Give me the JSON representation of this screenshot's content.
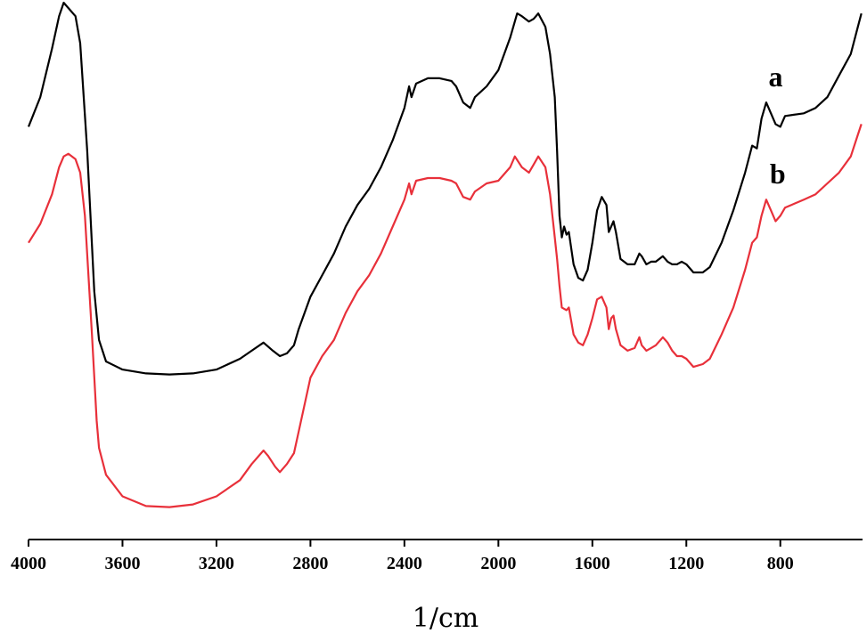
{
  "chart_data": {
    "type": "line",
    "title": "",
    "xlabel": "1/cm",
    "ylabel": "",
    "x_reversed": true,
    "xlim": [
      4000,
      450
    ],
    "ylim": [
      0,
      100
    ],
    "x_ticks": [
      4000,
      3600,
      3200,
      2800,
      2400,
      2000,
      1600,
      1200,
      800
    ],
    "x_tick_labels": [
      "4000",
      "3600",
      "3200",
      "2800",
      "2400",
      "2000",
      "1600",
      "1200",
      "800"
    ],
    "grid": false,
    "legend": "none",
    "series": [
      {
        "name": "a",
        "color": "#000000",
        "points": [
          [
            4000,
            76.5
          ],
          [
            3950,
            82
          ],
          [
            3900,
            91
          ],
          [
            3870,
            97
          ],
          [
            3850,
            99.5
          ],
          [
            3830,
            98.5
          ],
          [
            3800,
            97
          ],
          [
            3780,
            92
          ],
          [
            3750,
            72
          ],
          [
            3720,
            46
          ],
          [
            3700,
            37
          ],
          [
            3670,
            33
          ],
          [
            3600,
            31.5
          ],
          [
            3500,
            30.8
          ],
          [
            3400,
            30.6
          ],
          [
            3300,
            30.8
          ],
          [
            3200,
            31.5
          ],
          [
            3100,
            33.5
          ],
          [
            3050,
            35
          ],
          [
            3000,
            36.5
          ],
          [
            2960,
            35
          ],
          [
            2930,
            34
          ],
          [
            2900,
            34.5
          ],
          [
            2870,
            36
          ],
          [
            2850,
            39
          ],
          [
            2800,
            45
          ],
          [
            2750,
            49
          ],
          [
            2700,
            53
          ],
          [
            2650,
            58
          ],
          [
            2600,
            62
          ],
          [
            2550,
            65
          ],
          [
            2500,
            69
          ],
          [
            2450,
            74
          ],
          [
            2400,
            80
          ],
          [
            2380,
            84
          ],
          [
            2370,
            82
          ],
          [
            2350,
            84.5
          ],
          [
            2300,
            85.5
          ],
          [
            2250,
            85.5
          ],
          [
            2200,
            85
          ],
          [
            2180,
            84
          ],
          [
            2150,
            81
          ],
          [
            2120,
            80
          ],
          [
            2100,
            82
          ],
          [
            2050,
            84
          ],
          [
            2000,
            87
          ],
          [
            1950,
            93
          ],
          [
            1920,
            97.5
          ],
          [
            1900,
            97
          ],
          [
            1870,
            96
          ],
          [
            1850,
            96.5
          ],
          [
            1830,
            97.5
          ],
          [
            1800,
            95
          ],
          [
            1780,
            90
          ],
          [
            1760,
            82
          ],
          [
            1750,
            72
          ],
          [
            1740,
            60
          ],
          [
            1730,
            56
          ],
          [
            1720,
            58
          ],
          [
            1710,
            56.5
          ],
          [
            1700,
            57
          ],
          [
            1680,
            51
          ],
          [
            1660,
            48.5
          ],
          [
            1640,
            48
          ],
          [
            1620,
            50
          ],
          [
            1600,
            55
          ],
          [
            1580,
            61
          ],
          [
            1560,
            63.5
          ],
          [
            1540,
            62
          ],
          [
            1530,
            57
          ],
          [
            1520,
            58
          ],
          [
            1510,
            59
          ],
          [
            1500,
            57
          ],
          [
            1480,
            52
          ],
          [
            1450,
            51
          ],
          [
            1420,
            51
          ],
          [
            1400,
            53
          ],
          [
            1390,
            52.5
          ],
          [
            1370,
            51
          ],
          [
            1350,
            51.5
          ],
          [
            1330,
            51.5
          ],
          [
            1300,
            52.5
          ],
          [
            1280,
            51.5
          ],
          [
            1260,
            51
          ],
          [
            1240,
            51
          ],
          [
            1220,
            51.5
          ],
          [
            1200,
            51
          ],
          [
            1170,
            49.5
          ],
          [
            1130,
            49.5
          ],
          [
            1100,
            50.5
          ],
          [
            1050,
            55
          ],
          [
            1000,
            61
          ],
          [
            950,
            68
          ],
          [
            920,
            73
          ],
          [
            900,
            72.5
          ],
          [
            880,
            78
          ],
          [
            860,
            81
          ],
          [
            840,
            79
          ],
          [
            820,
            77
          ],
          [
            800,
            76.5
          ],
          [
            780,
            78.5
          ],
          [
            700,
            79
          ],
          [
            650,
            80
          ],
          [
            600,
            82
          ],
          [
            550,
            86
          ],
          [
            500,
            90
          ],
          [
            470,
            95
          ],
          [
            455,
            97.5
          ]
        ]
      },
      {
        "name": "b",
        "color": "#e8303a",
        "points": [
          [
            4000,
            55
          ],
          [
            3950,
            58.5
          ],
          [
            3900,
            64
          ],
          [
            3870,
            69
          ],
          [
            3850,
            71
          ],
          [
            3830,
            71.5
          ],
          [
            3800,
            70.5
          ],
          [
            3780,
            68
          ],
          [
            3760,
            60
          ],
          [
            3730,
            38
          ],
          [
            3710,
            22
          ],
          [
            3700,
            17
          ],
          [
            3670,
            12
          ],
          [
            3600,
            8
          ],
          [
            3500,
            6.2
          ],
          [
            3400,
            6
          ],
          [
            3300,
            6.5
          ],
          [
            3200,
            8
          ],
          [
            3100,
            11
          ],
          [
            3050,
            14
          ],
          [
            3000,
            16.5
          ],
          [
            2980,
            15.5
          ],
          [
            2950,
            13.5
          ],
          [
            2930,
            12.5
          ],
          [
            2900,
            14
          ],
          [
            2870,
            16
          ],
          [
            2850,
            20
          ],
          [
            2800,
            30
          ],
          [
            2750,
            34
          ],
          [
            2700,
            37
          ],
          [
            2650,
            42
          ],
          [
            2600,
            46
          ],
          [
            2550,
            49
          ],
          [
            2500,
            53
          ],
          [
            2450,
            58
          ],
          [
            2400,
            63
          ],
          [
            2380,
            66
          ],
          [
            2370,
            64
          ],
          [
            2350,
            66.5
          ],
          [
            2300,
            67
          ],
          [
            2250,
            67
          ],
          [
            2200,
            66.5
          ],
          [
            2180,
            66
          ],
          [
            2150,
            63.5
          ],
          [
            2120,
            63
          ],
          [
            2100,
            64.5
          ],
          [
            2050,
            66
          ],
          [
            2000,
            66.5
          ],
          [
            1950,
            69
          ],
          [
            1930,
            71
          ],
          [
            1900,
            69
          ],
          [
            1870,
            68
          ],
          [
            1850,
            69.5
          ],
          [
            1830,
            71
          ],
          [
            1800,
            69
          ],
          [
            1780,
            64
          ],
          [
            1760,
            56
          ],
          [
            1750,
            52
          ],
          [
            1740,
            47
          ],
          [
            1730,
            43
          ],
          [
            1710,
            42.5
          ],
          [
            1700,
            43
          ],
          [
            1680,
            38
          ],
          [
            1660,
            36.5
          ],
          [
            1640,
            36
          ],
          [
            1620,
            38
          ],
          [
            1600,
            41
          ],
          [
            1580,
            44.5
          ],
          [
            1560,
            45
          ],
          [
            1540,
            43
          ],
          [
            1530,
            39
          ],
          [
            1520,
            41
          ],
          [
            1510,
            41.5
          ],
          [
            1500,
            39
          ],
          [
            1480,
            36
          ],
          [
            1450,
            35
          ],
          [
            1420,
            35.5
          ],
          [
            1400,
            37.5
          ],
          [
            1390,
            36
          ],
          [
            1370,
            35
          ],
          [
            1350,
            35.5
          ],
          [
            1330,
            36
          ],
          [
            1300,
            37.5
          ],
          [
            1280,
            36.5
          ],
          [
            1260,
            35
          ],
          [
            1240,
            34
          ],
          [
            1220,
            34
          ],
          [
            1200,
            33.5
          ],
          [
            1170,
            32
          ],
          [
            1130,
            32.5
          ],
          [
            1100,
            33.5
          ],
          [
            1050,
            38
          ],
          [
            1000,
            43
          ],
          [
            950,
            50
          ],
          [
            920,
            55
          ],
          [
            900,
            56
          ],
          [
            880,
            60
          ],
          [
            860,
            63
          ],
          [
            840,
            61
          ],
          [
            820,
            59
          ],
          [
            800,
            60
          ],
          [
            780,
            61.5
          ],
          [
            700,
            63
          ],
          [
            650,
            64
          ],
          [
            600,
            66
          ],
          [
            550,
            68
          ],
          [
            500,
            71
          ],
          [
            470,
            75
          ],
          [
            455,
            77
          ]
        ]
      }
    ],
    "annotations": [
      {
        "text": "a",
        "x": 850,
        "y": 84
      },
      {
        "text": "b",
        "x": 845,
        "y": 66
      }
    ]
  }
}
